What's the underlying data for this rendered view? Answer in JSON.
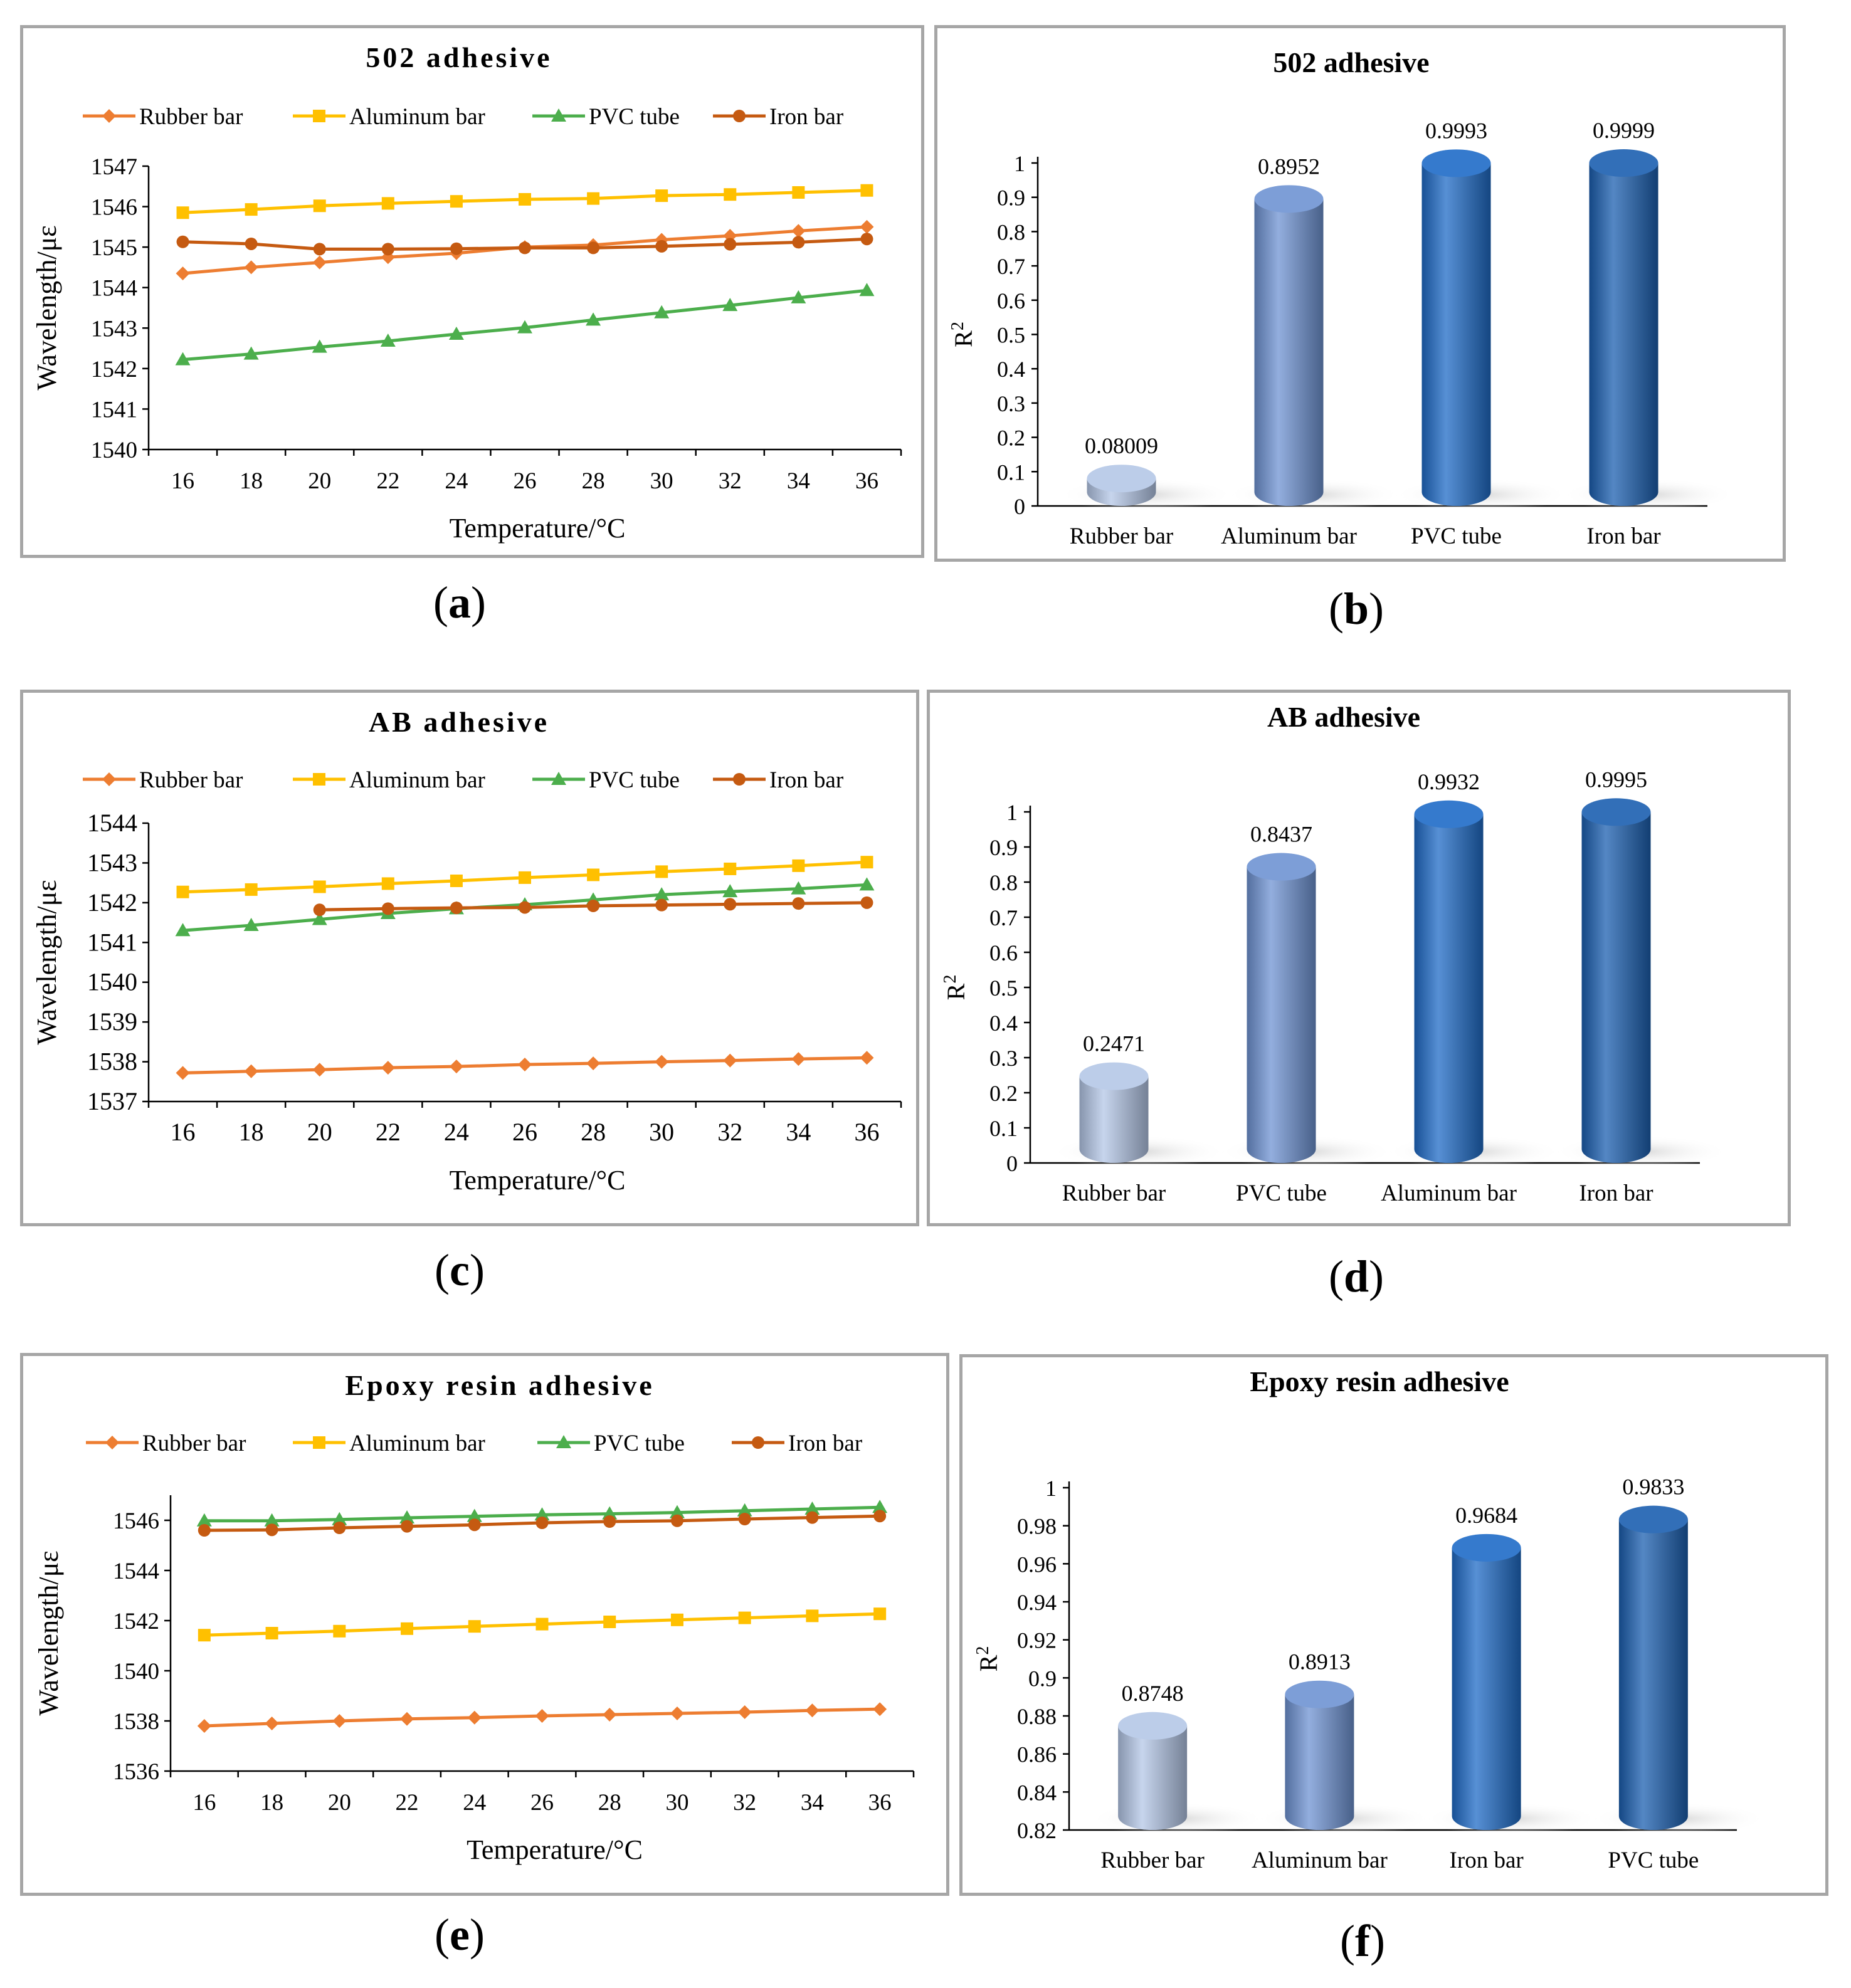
{
  "captions": [
    "a",
    "b",
    "c",
    "d",
    "e",
    "f"
  ],
  "series_colors": {
    "Rubber bar": "#ed7d31",
    "Aluminum bar": "#ffc000",
    "PVC tube": "#4cae4c",
    "Iron bar": "#c55a11"
  },
  "bar_colors": [
    "#b4c7e7",
    "#6f93d3",
    "#1f6bc7",
    "#1b5fb0"
  ],
  "chart_data": [
    {
      "type": "line",
      "title": "502 adhesive",
      "xlabel": "Temperature/°C",
      "ylabel": "Wavelength/με",
      "x": [
        16,
        18,
        20,
        22,
        24,
        26,
        28,
        30,
        32,
        34,
        36
      ],
      "ylim": [
        1540,
        1547
      ],
      "yticks": [
        1540,
        1541,
        1542,
        1543,
        1544,
        1545,
        1546,
        1547
      ],
      "legend_position": "top",
      "series": [
        {
          "name": "Rubber bar",
          "marker": "diamond",
          "values": [
            1544.35,
            1544.5,
            1544.62,
            1544.75,
            1544.85,
            1545.0,
            1545.05,
            1545.18,
            1545.28,
            1545.4,
            1545.5
          ]
        },
        {
          "name": "Aluminum bar",
          "marker": "square",
          "values": [
            1545.85,
            1545.93,
            1546.02,
            1546.08,
            1546.13,
            1546.18,
            1546.2,
            1546.27,
            1546.3,
            1546.35,
            1546.4
          ]
        },
        {
          "name": "PVC tube",
          "marker": "triangle",
          "values": [
            1542.22,
            1542.36,
            1542.53,
            1542.68,
            1542.85,
            1543.01,
            1543.2,
            1543.38,
            1543.56,
            1543.75,
            1543.93
          ]
        },
        {
          "name": "Iron bar",
          "marker": "circle",
          "values": [
            1545.13,
            1545.08,
            1544.95,
            1544.95,
            1544.96,
            1544.98,
            1544.98,
            1545.02,
            1545.07,
            1545.12,
            1545.2
          ]
        }
      ]
    },
    {
      "type": "bar",
      "title": "502 adhesive",
      "ylabel": "R2",
      "categories": [
        "Rubber bar",
        "Aluminum bar",
        "PVC tube",
        "Iron bar"
      ],
      "values": [
        0.08009,
        0.8952,
        0.9993,
        0.9999
      ],
      "labels": [
        "0.08009",
        "0.8952",
        "0.9993",
        "0.9999"
      ],
      "ylim": [
        0,
        1
      ],
      "yticks": [
        "0",
        "0.1",
        "0.2",
        "0.3",
        "0.4",
        "0.5",
        "0.6",
        "0.7",
        "0.8",
        "0.9",
        "1"
      ]
    },
    {
      "type": "line",
      "title": "AB adhesive",
      "xlabel": "Temperature/°C",
      "ylabel": "Wavelength/με",
      "x": [
        16,
        18,
        20,
        22,
        24,
        26,
        28,
        30,
        32,
        34,
        36
      ],
      "ylim": [
        1537,
        1544
      ],
      "yticks": [
        1537,
        1538,
        1539,
        1540,
        1541,
        1542,
        1543,
        1544
      ],
      "legend_position": "top",
      "series": [
        {
          "name": "Rubber bar",
          "marker": "diamond",
          "values": [
            1537.72,
            1537.76,
            1537.8,
            1537.85,
            1537.88,
            1537.93,
            1537.96,
            1538.0,
            1538.03,
            1538.07,
            1538.1
          ]
        },
        {
          "name": "Aluminum bar",
          "marker": "square",
          "values": [
            1542.27,
            1542.33,
            1542.4,
            1542.48,
            1542.55,
            1542.63,
            1542.7,
            1542.78,
            1542.85,
            1542.93,
            1543.02
          ]
        },
        {
          "name": "PVC tube",
          "marker": "triangle",
          "values": [
            1541.3,
            1541.43,
            1541.58,
            1541.73,
            1541.85,
            1541.95,
            1542.07,
            1542.2,
            1542.28,
            1542.35,
            1542.45
          ]
        },
        {
          "name": "Iron bar",
          "marker": "circle",
          "values": [
            null,
            null,
            1541.82,
            1541.85,
            1541.87,
            1541.88,
            1541.92,
            1541.94,
            1541.96,
            1541.98,
            1542.0
          ]
        }
      ]
    },
    {
      "type": "bar",
      "title": "AB adhesive",
      "ylabel": "R2",
      "categories": [
        "Rubber bar",
        "PVC tube",
        "Aluminum bar",
        "Iron bar"
      ],
      "values": [
        0.2471,
        0.8437,
        0.9932,
        0.9995
      ],
      "labels": [
        "0.2471",
        "0.8437",
        "0.9932",
        "0.9995"
      ],
      "ylim": [
        0,
        1
      ],
      "yticks": [
        "0",
        "0.1",
        "0.2",
        "0.3",
        "0.4",
        "0.5",
        "0.6",
        "0.7",
        "0.8",
        "0.9",
        "1"
      ]
    },
    {
      "type": "line",
      "title": "Epoxy resin adhesive",
      "xlabel": "Temperature/°C",
      "ylabel": "Wavelength/με",
      "x": [
        16,
        18,
        20,
        22,
        24,
        26,
        28,
        30,
        32,
        34,
        36
      ],
      "ylim": [
        1536,
        1547
      ],
      "yticks": [
        1536,
        1538,
        1540,
        1542,
        1544,
        1546
      ],
      "legend_position": "top",
      "series": [
        {
          "name": "Rubber bar",
          "marker": "diamond",
          "values": [
            1537.8,
            1537.9,
            1538.0,
            1538.08,
            1538.13,
            1538.2,
            1538.25,
            1538.3,
            1538.35,
            1538.42,
            1538.47
          ]
        },
        {
          "name": "Aluminum bar",
          "marker": "square",
          "values": [
            1541.42,
            1541.5,
            1541.58,
            1541.68,
            1541.77,
            1541.86,
            1541.95,
            1542.03,
            1542.11,
            1542.19,
            1542.27
          ]
        },
        {
          "name": "PVC tube",
          "marker": "triangle",
          "values": [
            1545.98,
            1545.98,
            1546.03,
            1546.1,
            1546.16,
            1546.22,
            1546.26,
            1546.31,
            1546.38,
            1546.45,
            1546.52
          ]
        },
        {
          "name": "Iron bar",
          "marker": "circle",
          "values": [
            1545.6,
            1545.62,
            1545.7,
            1545.76,
            1545.82,
            1545.9,
            1545.95,
            1545.98,
            1546.05,
            1546.11,
            1546.17
          ]
        }
      ]
    },
    {
      "type": "bar",
      "title": "Epoxy resin adhesive",
      "ylabel": "R2",
      "categories": [
        "Rubber bar",
        "Aluminum bar",
        "Iron bar",
        "PVC tube"
      ],
      "values": [
        0.8748,
        0.8913,
        0.9684,
        0.9833
      ],
      "labels": [
        "0.8748",
        "0.8913",
        "0.9684",
        "0.9833"
      ],
      "ylim": [
        0.82,
        1
      ],
      "yticks": [
        "0.82",
        "0.84",
        "0.86",
        "0.88",
        "0.9",
        "0.92",
        "0.94",
        "0.96",
        "0.98",
        "1"
      ]
    }
  ]
}
